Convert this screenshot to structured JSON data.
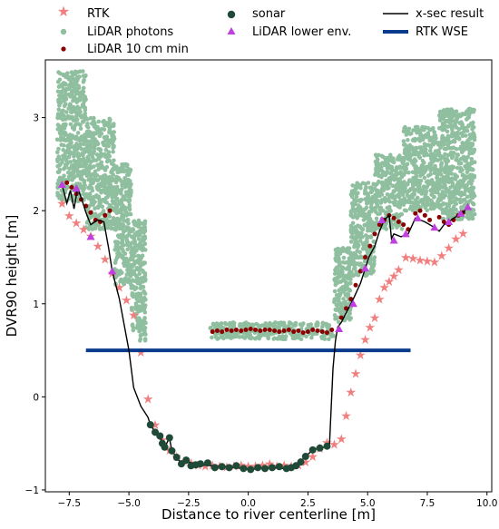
{
  "chart_data": {
    "type": "scatter",
    "title": "",
    "xlabel": "Distance to river centerline [m]",
    "ylabel": "DVR90 height [m]",
    "xlim": [
      -8.5,
      10.2
    ],
    "ylim": [
      -1.02,
      3.62
    ],
    "xticks": [
      -7.5,
      -5.0,
      -2.5,
      0.0,
      2.5,
      5.0,
      7.5,
      10.0
    ],
    "xtick_labels": [
      "−7.5",
      "−5.0",
      "−2.5",
      "0.0",
      "2.5",
      "5.0",
      "7.5",
      "10.0"
    ],
    "yticks": [
      -1,
      0,
      1,
      2,
      3
    ],
    "ytick_labels": [
      "−1",
      "0",
      "1",
      "2",
      "3"
    ],
    "grid": false,
    "legend": {
      "placement": "top, above plot, 3 columns",
      "entries": [
        {
          "label": "RTK",
          "series": "rtk"
        },
        {
          "label": "LiDAR photons",
          "series": "lidar_photons"
        },
        {
          "label": "LiDAR 10 cm min",
          "series": "lidar_10cm_min"
        },
        {
          "label": "sonar",
          "series": "sonar"
        },
        {
          "label": "LiDAR lower env.",
          "series": "lidar_lower_env"
        },
        {
          "label": "x-sec result",
          "series": "xsec_result"
        },
        {
          "label": "RTK WSE",
          "series": "rtk_wse"
        }
      ]
    },
    "colors": {
      "rtk": "#f08080",
      "lidar_photons": "#8fbf9f",
      "lidar_10cm_min": "#8b0000",
      "sonar": "#1f4a38",
      "lidar_lower_env": "#bf3fdf",
      "xsec_result": "#000000",
      "rtk_wse": "#0a3a8c"
    },
    "lidar_photon_regions": [
      {
        "x": [
          -8.0,
          -6.8
        ],
        "ymin": 2.1,
        "ymax": 3.5
      },
      {
        "x": [
          -6.8,
          -5.6
        ],
        "ymin": 1.8,
        "ymax": 3.0
      },
      {
        "x": [
          -5.6,
          -4.9
        ],
        "ymin": 1.2,
        "ymax": 2.5
      },
      {
        "x": [
          -4.9,
          -4.3
        ],
        "ymin": 0.6,
        "ymax": 1.9
      },
      {
        "x": [
          -1.6,
          3.6
        ],
        "ymin": 0.62,
        "ymax": 0.8
      },
      {
        "x": [
          3.6,
          4.3
        ],
        "ymin": 0.8,
        "ymax": 1.6
      },
      {
        "x": [
          4.3,
          5.3
        ],
        "ymin": 1.3,
        "ymax": 2.3
      },
      {
        "x": [
          5.3,
          6.5
        ],
        "ymin": 1.8,
        "ymax": 2.6
      },
      {
        "x": [
          6.5,
          8.0
        ],
        "ymin": 2.0,
        "ymax": 2.9
      },
      {
        "x": [
          8.0,
          9.5
        ],
        "ymin": 1.9,
        "ymax": 3.1
      }
    ],
    "series": [
      {
        "id": "rtk",
        "name": "RTK",
        "x": [
          -7.8,
          -7.5,
          -7.2,
          -6.9,
          -6.6,
          -6.3,
          -6.0,
          -5.7,
          -5.4,
          -5.1,
          -4.8,
          -4.5,
          -4.2,
          -3.9,
          -3.6,
          -3.3,
          -3.0,
          -2.7,
          -2.4,
          -2.1,
          -1.8,
          -1.5,
          -1.2,
          -0.9,
          -0.6,
          -0.3,
          0.0,
          0.3,
          0.6,
          0.9,
          1.2,
          1.5,
          1.8,
          2.1,
          2.4,
          2.7,
          3.0,
          3.3,
          3.6,
          3.9,
          4.1,
          4.3,
          4.5,
          4.7,
          4.9,
          5.1,
          5.3,
          5.5,
          5.7,
          5.9,
          6.1,
          6.3,
          6.6,
          6.9,
          7.2,
          7.5,
          7.8,
          8.1,
          8.4,
          8.7,
          9.0
        ],
        "y": [
          2.08,
          1.95,
          1.87,
          1.8,
          1.73,
          1.62,
          1.48,
          1.33,
          1.18,
          1.04,
          0.88,
          0.48,
          -0.02,
          -0.3,
          -0.46,
          -0.57,
          -0.64,
          -0.69,
          -0.71,
          -0.73,
          -0.74,
          -0.73,
          -0.74,
          -0.75,
          -0.74,
          -0.73,
          -0.74,
          -0.74,
          -0.73,
          -0.72,
          -0.74,
          -0.73,
          -0.74,
          -0.73,
          -0.7,
          -0.64,
          -0.55,
          -0.49,
          -0.51,
          -0.45,
          -0.2,
          0.05,
          0.25,
          0.45,
          0.62,
          0.75,
          0.85,
          1.05,
          1.18,
          1.24,
          1.3,
          1.37,
          1.5,
          1.49,
          1.47,
          1.46,
          1.45,
          1.52,
          1.6,
          1.7,
          1.76
        ]
      },
      {
        "id": "lidar_10cm_min",
        "name": "LiDAR 10 cm min",
        "x": [
          -7.6,
          -7.4,
          -7.2,
          -7.0,
          -6.8,
          -6.6,
          -6.4,
          -6.2,
          -6.0,
          -5.8,
          -1.5,
          -1.3,
          -1.1,
          -0.9,
          -0.7,
          -0.5,
          -0.3,
          -0.1,
          0.1,
          0.3,
          0.5,
          0.7,
          0.9,
          1.1,
          1.3,
          1.5,
          1.7,
          1.9,
          2.1,
          2.3,
          2.5,
          2.7,
          2.9,
          3.1,
          3.3,
          3.5,
          3.9,
          4.1,
          4.3,
          4.5,
          4.7,
          4.9,
          5.1,
          5.3,
          5.5,
          5.7,
          5.9,
          6.1,
          6.3,
          6.5,
          6.7,
          7.0,
          7.2,
          7.4,
          7.6,
          8.0,
          8.2,
          8.4,
          8.6,
          8.8,
          9.0
        ],
        "y": [
          2.3,
          2.25,
          2.18,
          2.12,
          2.05,
          1.98,
          1.9,
          1.88,
          1.95,
          2.0,
          0.7,
          0.71,
          0.7,
          0.72,
          0.71,
          0.72,
          0.71,
          0.72,
          0.73,
          0.72,
          0.71,
          0.72,
          0.72,
          0.71,
          0.7,
          0.71,
          0.72,
          0.7,
          0.71,
          0.69,
          0.7,
          0.72,
          0.71,
          0.7,
          0.69,
          0.72,
          0.85,
          0.95,
          1.05,
          1.2,
          1.35,
          1.5,
          1.62,
          1.75,
          1.85,
          1.9,
          1.95,
          1.92,
          1.88,
          1.85,
          1.8,
          1.97,
          2.0,
          1.95,
          1.9,
          1.93,
          1.88,
          1.85,
          1.9,
          1.95,
          1.98
        ]
      },
      {
        "id": "sonar",
        "name": "sonar",
        "x": [
          -4.1,
          -3.9,
          -3.7,
          -3.6,
          -3.5,
          -3.3,
          -3.2,
          -3.0,
          -2.8,
          -2.6,
          -2.4,
          -2.2,
          -2.0,
          -1.7,
          -1.4,
          -1.1,
          -0.8,
          -0.5,
          -0.2,
          0.1,
          0.4,
          0.7,
          1.0,
          1.3,
          1.6,
          1.8,
          2.0,
          2.2,
          2.4,
          2.7,
          3.0,
          3.3
        ],
        "y": [
          -0.3,
          -0.38,
          -0.42,
          -0.5,
          -0.54,
          -0.44,
          -0.58,
          -0.65,
          -0.72,
          -0.68,
          -0.74,
          -0.73,
          -0.72,
          -0.71,
          -0.76,
          -0.75,
          -0.76,
          -0.74,
          -0.77,
          -0.78,
          -0.76,
          -0.77,
          -0.76,
          -0.75,
          -0.77,
          -0.76,
          -0.74,
          -0.7,
          -0.64,
          -0.57,
          -0.55,
          -0.53
        ]
      },
      {
        "id": "lidar_lower_env",
        "name": "LiDAR lower env.",
        "x": [
          -7.8,
          -7.2,
          -6.6,
          -5.7,
          3.8,
          4.4,
          4.9,
          5.6,
          6.1,
          6.6,
          7.1,
          7.8,
          8.4,
          8.9,
          9.2
        ],
        "y": [
          2.28,
          2.24,
          1.72,
          1.35,
          0.73,
          1.0,
          1.38,
          1.9,
          1.68,
          1.75,
          1.92,
          1.82,
          1.88,
          1.97,
          2.04
        ]
      },
      {
        "id": "xsec_result",
        "name": "x-sec result",
        "x": [
          -7.8,
          -7.6,
          -7.45,
          -7.3,
          -7.15,
          -7.0,
          -6.8,
          -6.6,
          -6.3,
          -6.05,
          -5.85,
          -5.7,
          -5.4,
          -5.0,
          -4.8,
          -4.5,
          -4.2,
          -4.1,
          -3.9,
          -3.7,
          -3.6,
          -3.5,
          -3.3,
          -3.2,
          -3.0,
          -2.8,
          -2.5,
          -2.0,
          -1.5,
          -1.0,
          -0.5,
          0.0,
          0.5,
          1.0,
          1.5,
          2.0,
          2.4,
          2.7,
          3.0,
          3.4,
          3.55,
          3.65,
          3.75,
          3.9,
          4.1,
          4.4,
          4.7,
          4.9,
          5.05,
          5.3,
          5.5,
          5.7,
          5.9,
          6.0,
          6.1,
          6.4,
          6.7,
          7.0,
          7.4,
          7.8,
          8.0,
          8.2,
          8.4,
          8.6,
          8.8,
          9.0,
          9.2
        ],
        "y": [
          2.28,
          2.08,
          2.22,
          2.02,
          2.24,
          2.14,
          1.98,
          1.85,
          1.9,
          1.88,
          1.6,
          1.35,
          1.05,
          0.5,
          0.1,
          -0.1,
          -0.22,
          -0.3,
          -0.38,
          -0.42,
          -0.5,
          -0.54,
          -0.44,
          -0.58,
          -0.65,
          -0.72,
          -0.7,
          -0.73,
          -0.74,
          -0.75,
          -0.76,
          -0.78,
          -0.77,
          -0.76,
          -0.77,
          -0.74,
          -0.64,
          -0.57,
          -0.55,
          -0.53,
          0.3,
          0.6,
          0.75,
          0.8,
          0.9,
          1.05,
          1.22,
          1.38,
          1.5,
          1.62,
          1.78,
          1.9,
          1.95,
          1.7,
          1.75,
          1.72,
          1.75,
          1.92,
          1.88,
          1.82,
          1.78,
          1.85,
          1.88,
          1.92,
          1.95,
          1.98,
          2.04
        ]
      },
      {
        "id": "rtk_wse",
        "name": "RTK WSE",
        "x": [
          -6.8,
          6.8
        ],
        "y": [
          0.5,
          0.5
        ]
      }
    ]
  }
}
